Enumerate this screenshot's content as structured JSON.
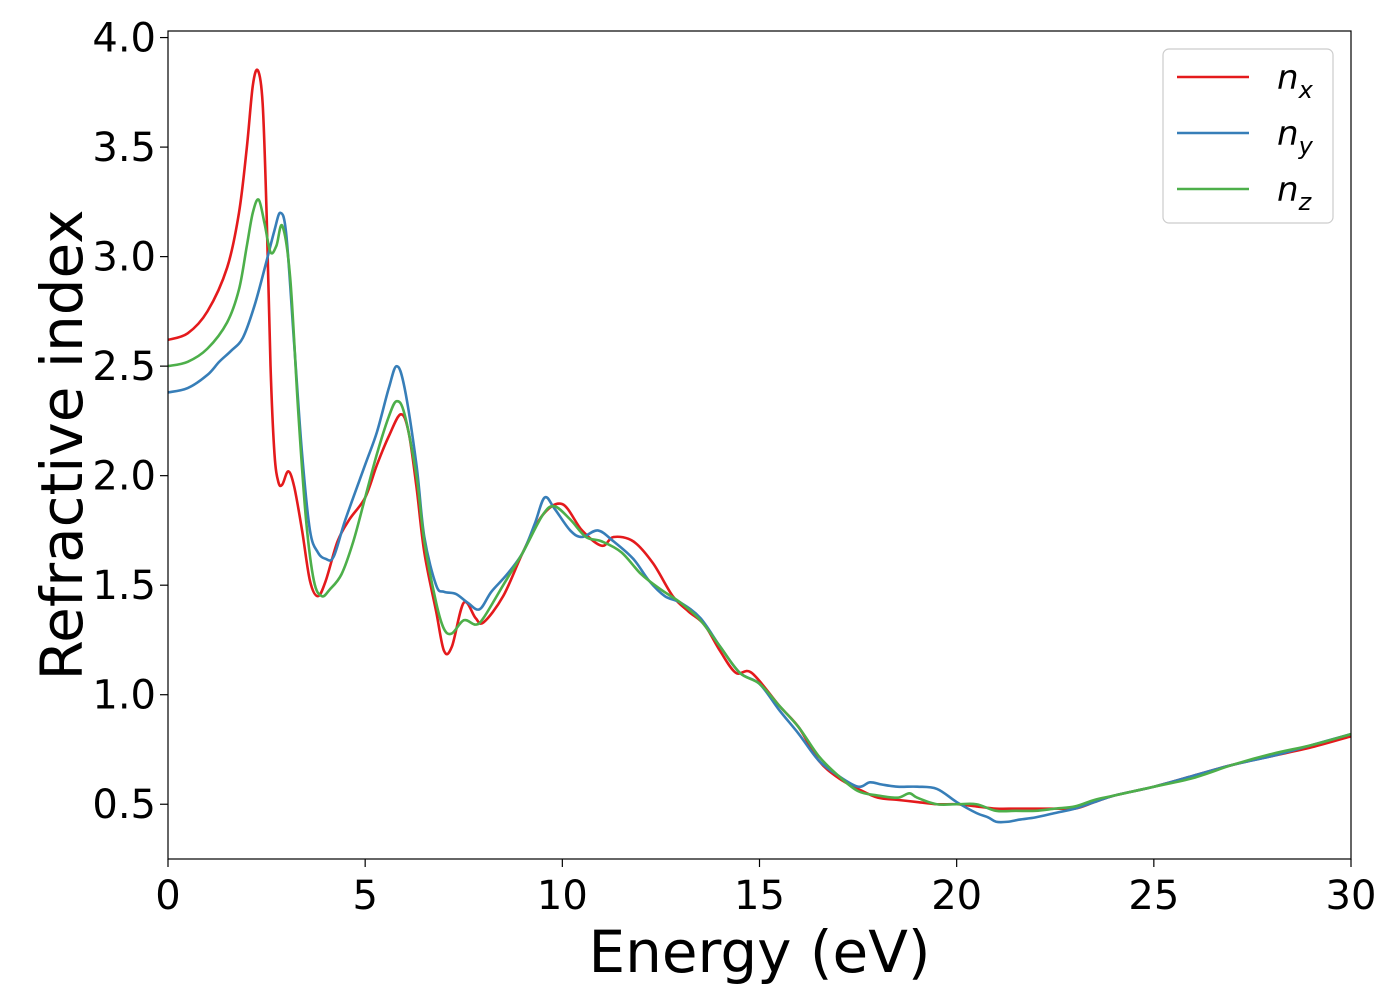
{
  "chart_data": {
    "type": "line",
    "title": "",
    "xlabel": "Energy (eV)",
    "ylabel": "Refractive index",
    "xlim": [
      0,
      30
    ],
    "ylim": [
      0.25,
      4.03
    ],
    "xticks": [
      0,
      5,
      10,
      15,
      20,
      25,
      30
    ],
    "xtick_labels": [
      "0",
      "5",
      "10",
      "15",
      "20",
      "25",
      "30"
    ],
    "yticks": [
      0.5,
      1.0,
      1.5,
      2.0,
      2.5,
      3.0,
      3.5,
      4.0
    ],
    "ytick_labels": [
      "0.5",
      "1.0",
      "1.5",
      "2.0",
      "2.5",
      "3.0",
      "3.5",
      "4.0"
    ],
    "grid": false,
    "legend_position": "top-right",
    "series": [
      {
        "name": "n_x",
        "label_base": "n",
        "label_sub": "x",
        "color": "#e41a1c",
        "points": [
          [
            0,
            2.62
          ],
          [
            0.5,
            2.65
          ],
          [
            1.0,
            2.75
          ],
          [
            1.5,
            2.95
          ],
          [
            1.8,
            3.2
          ],
          [
            2.0,
            3.5
          ],
          [
            2.15,
            3.78
          ],
          [
            2.28,
            3.85
          ],
          [
            2.4,
            3.7
          ],
          [
            2.5,
            3.2
          ],
          [
            2.6,
            2.5
          ],
          [
            2.7,
            2.1
          ],
          [
            2.8,
            1.97
          ],
          [
            2.9,
            1.96
          ],
          [
            3.05,
            2.02
          ],
          [
            3.2,
            1.95
          ],
          [
            3.4,
            1.75
          ],
          [
            3.6,
            1.52
          ],
          [
            3.8,
            1.45
          ],
          [
            4.0,
            1.52
          ],
          [
            4.3,
            1.7
          ],
          [
            4.6,
            1.8
          ],
          [
            5.0,
            1.9
          ],
          [
            5.3,
            2.05
          ],
          [
            5.6,
            2.18
          ],
          [
            5.9,
            2.28
          ],
          [
            6.1,
            2.2
          ],
          [
            6.3,
            1.95
          ],
          [
            6.5,
            1.65
          ],
          [
            6.8,
            1.38
          ],
          [
            7.0,
            1.2
          ],
          [
            7.2,
            1.22
          ],
          [
            7.5,
            1.42
          ],
          [
            7.8,
            1.35
          ],
          [
            8.0,
            1.33
          ],
          [
            8.5,
            1.45
          ],
          [
            9.0,
            1.65
          ],
          [
            9.5,
            1.82
          ],
          [
            10.0,
            1.87
          ],
          [
            10.5,
            1.75
          ],
          [
            11.0,
            1.68
          ],
          [
            11.3,
            1.72
          ],
          [
            11.8,
            1.7
          ],
          [
            12.3,
            1.6
          ],
          [
            12.8,
            1.45
          ],
          [
            13.2,
            1.38
          ],
          [
            13.6,
            1.32
          ],
          [
            14.0,
            1.2
          ],
          [
            14.4,
            1.1
          ],
          [
            14.8,
            1.1
          ],
          [
            15.5,
            0.95
          ],
          [
            16.0,
            0.85
          ],
          [
            16.5,
            0.7
          ],
          [
            17.0,
            0.62
          ],
          [
            17.5,
            0.57
          ],
          [
            18.0,
            0.53
          ],
          [
            18.5,
            0.52
          ],
          [
            19.0,
            0.51
          ],
          [
            19.5,
            0.5
          ],
          [
            20.0,
            0.5
          ],
          [
            20.5,
            0.49
          ],
          [
            21.0,
            0.48
          ],
          [
            21.5,
            0.48
          ],
          [
            22.0,
            0.48
          ],
          [
            22.5,
            0.48
          ],
          [
            23.0,
            0.48
          ],
          [
            23.5,
            0.51
          ],
          [
            24.0,
            0.54
          ],
          [
            25.0,
            0.58
          ],
          [
            26.0,
            0.63
          ],
          [
            27.0,
            0.68
          ],
          [
            28.0,
            0.72
          ],
          [
            29.0,
            0.76
          ],
          [
            30.0,
            0.81
          ]
        ]
      },
      {
        "name": "n_y",
        "label_base": "n",
        "label_sub": "y",
        "color": "#377eb8",
        "points": [
          [
            0,
            2.38
          ],
          [
            0.5,
            2.4
          ],
          [
            1.0,
            2.46
          ],
          [
            1.3,
            2.52
          ],
          [
            1.6,
            2.57
          ],
          [
            1.9,
            2.63
          ],
          [
            2.2,
            2.78
          ],
          [
            2.5,
            2.98
          ],
          [
            2.7,
            3.12
          ],
          [
            2.85,
            3.2
          ],
          [
            3.0,
            3.1
          ],
          [
            3.2,
            2.6
          ],
          [
            3.4,
            2.1
          ],
          [
            3.6,
            1.75
          ],
          [
            3.8,
            1.65
          ],
          [
            4.0,
            1.62
          ],
          [
            4.2,
            1.63
          ],
          [
            4.5,
            1.8
          ],
          [
            5.0,
            2.05
          ],
          [
            5.3,
            2.2
          ],
          [
            5.6,
            2.4
          ],
          [
            5.8,
            2.5
          ],
          [
            6.0,
            2.4
          ],
          [
            6.3,
            2.05
          ],
          [
            6.5,
            1.72
          ],
          [
            6.8,
            1.5
          ],
          [
            7.0,
            1.47
          ],
          [
            7.3,
            1.46
          ],
          [
            7.6,
            1.42
          ],
          [
            7.9,
            1.39
          ],
          [
            8.2,
            1.47
          ],
          [
            8.6,
            1.55
          ],
          [
            9.0,
            1.65
          ],
          [
            9.3,
            1.78
          ],
          [
            9.55,
            1.9
          ],
          [
            9.8,
            1.85
          ],
          [
            10.2,
            1.75
          ],
          [
            10.5,
            1.72
          ],
          [
            10.9,
            1.75
          ],
          [
            11.3,
            1.7
          ],
          [
            11.8,
            1.62
          ],
          [
            12.2,
            1.52
          ],
          [
            12.6,
            1.45
          ],
          [
            13.0,
            1.42
          ],
          [
            13.5,
            1.35
          ],
          [
            14.0,
            1.22
          ],
          [
            14.5,
            1.1
          ],
          [
            15.0,
            1.05
          ],
          [
            15.5,
            0.93
          ],
          [
            16.0,
            0.82
          ],
          [
            16.5,
            0.7
          ],
          [
            17.0,
            0.63
          ],
          [
            17.5,
            0.58
          ],
          [
            17.8,
            0.6
          ],
          [
            18.1,
            0.59
          ],
          [
            18.5,
            0.58
          ],
          [
            19.0,
            0.58
          ],
          [
            19.5,
            0.57
          ],
          [
            20.0,
            0.51
          ],
          [
            20.5,
            0.46
          ],
          [
            20.8,
            0.44
          ],
          [
            21.0,
            0.42
          ],
          [
            21.3,
            0.42
          ],
          [
            21.6,
            0.43
          ],
          [
            22.0,
            0.44
          ],
          [
            22.5,
            0.46
          ],
          [
            23.0,
            0.48
          ],
          [
            23.5,
            0.51
          ],
          [
            24.0,
            0.54
          ],
          [
            25.0,
            0.58
          ],
          [
            26.0,
            0.63
          ],
          [
            27.0,
            0.68
          ],
          [
            28.0,
            0.72
          ],
          [
            29.0,
            0.77
          ],
          [
            30.0,
            0.82
          ]
        ]
      },
      {
        "name": "n_z",
        "label_base": "n",
        "label_sub": "z",
        "color": "#4daf4a",
        "points": [
          [
            0,
            2.5
          ],
          [
            0.5,
            2.52
          ],
          [
            1.0,
            2.58
          ],
          [
            1.5,
            2.7
          ],
          [
            1.8,
            2.85
          ],
          [
            2.0,
            3.05
          ],
          [
            2.15,
            3.2
          ],
          [
            2.3,
            3.26
          ],
          [
            2.45,
            3.15
          ],
          [
            2.6,
            3.02
          ],
          [
            2.75,
            3.05
          ],
          [
            2.9,
            3.14
          ],
          [
            3.1,
            2.9
          ],
          [
            3.3,
            2.3
          ],
          [
            3.5,
            1.8
          ],
          [
            3.7,
            1.52
          ],
          [
            3.9,
            1.45
          ],
          [
            4.1,
            1.48
          ],
          [
            4.4,
            1.55
          ],
          [
            4.7,
            1.7
          ],
          [
            5.0,
            1.9
          ],
          [
            5.3,
            2.1
          ],
          [
            5.6,
            2.27
          ],
          [
            5.8,
            2.34
          ],
          [
            6.0,
            2.28
          ],
          [
            6.3,
            2.0
          ],
          [
            6.5,
            1.7
          ],
          [
            6.8,
            1.42
          ],
          [
            7.0,
            1.3
          ],
          [
            7.2,
            1.28
          ],
          [
            7.5,
            1.34
          ],
          [
            7.8,
            1.32
          ],
          [
            8.0,
            1.35
          ],
          [
            8.5,
            1.5
          ],
          [
            9.0,
            1.65
          ],
          [
            9.5,
            1.82
          ],
          [
            9.8,
            1.86
          ],
          [
            10.2,
            1.8
          ],
          [
            10.6,
            1.72
          ],
          [
            11.0,
            1.7
          ],
          [
            11.5,
            1.65
          ],
          [
            12.0,
            1.55
          ],
          [
            12.5,
            1.48
          ],
          [
            13.0,
            1.42
          ],
          [
            13.5,
            1.34
          ],
          [
            14.0,
            1.22
          ],
          [
            14.5,
            1.1
          ],
          [
            15.0,
            1.05
          ],
          [
            15.5,
            0.95
          ],
          [
            16.0,
            0.85
          ],
          [
            16.5,
            0.72
          ],
          [
            17.0,
            0.63
          ],
          [
            17.5,
            0.56
          ],
          [
            18.0,
            0.54
          ],
          [
            18.5,
            0.53
          ],
          [
            18.8,
            0.55
          ],
          [
            19.0,
            0.53
          ],
          [
            19.5,
            0.5
          ],
          [
            20.0,
            0.5
          ],
          [
            20.5,
            0.5
          ],
          [
            21.0,
            0.47
          ],
          [
            21.5,
            0.47
          ],
          [
            22.0,
            0.47
          ],
          [
            22.5,
            0.48
          ],
          [
            23.0,
            0.49
          ],
          [
            23.5,
            0.52
          ],
          [
            24.0,
            0.54
          ],
          [
            25.0,
            0.58
          ],
          [
            26.0,
            0.62
          ],
          [
            27.0,
            0.68
          ],
          [
            28.0,
            0.73
          ],
          [
            29.0,
            0.77
          ],
          [
            30.0,
            0.82
          ]
        ]
      }
    ]
  }
}
